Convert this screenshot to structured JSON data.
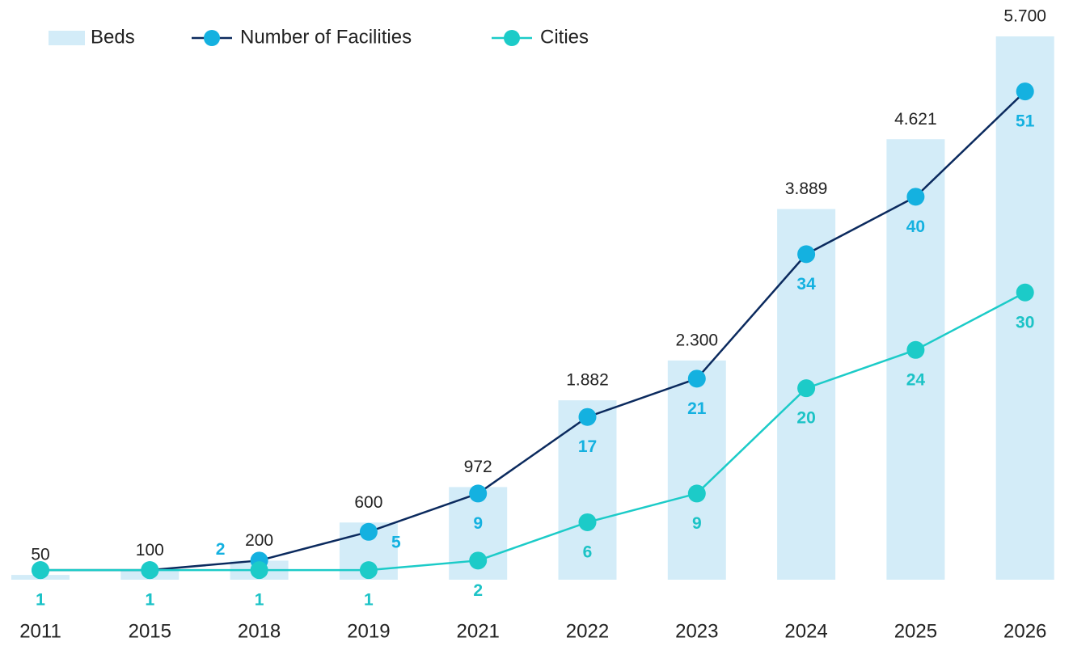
{
  "chart_data": {
    "type": "bar_line",
    "categories": [
      "2011",
      "2015",
      "2018",
      "2019",
      "2021",
      "2022",
      "2023",
      "2024",
      "2025",
      "2026"
    ],
    "series": [
      {
        "name": "Beds",
        "type": "bar",
        "color": "#d3ecf8",
        "values": [
          50,
          100,
          200,
          600,
          972,
          1882,
          2300,
          3889,
          4621,
          5700
        ],
        "value_labels": [
          "50",
          "100",
          "200",
          "600",
          "972",
          "1.882",
          "2.300",
          "3.889",
          "4.621",
          "5.700"
        ]
      },
      {
        "name": "Number of Facilities",
        "type": "line",
        "axis": "y2",
        "color": "#0b2a5e",
        "marker_color": "#14b1e0",
        "label_color": "#14b1e0",
        "values": [
          1,
          1,
          2,
          5,
          9,
          17,
          21,
          34,
          40,
          51
        ]
      },
      {
        "name": "Cities",
        "type": "line",
        "axis": "y2",
        "color": "#1ccbc8",
        "marker_color": "#1ccbc8",
        "label_color": "#1cc3c6",
        "values": [
          1,
          1,
          1,
          1,
          2,
          6,
          9,
          20,
          24,
          30
        ]
      }
    ],
    "ylim": [
      0,
      5700
    ],
    "y2lim": [
      0,
      56.75
    ],
    "legend": "top-left"
  }
}
